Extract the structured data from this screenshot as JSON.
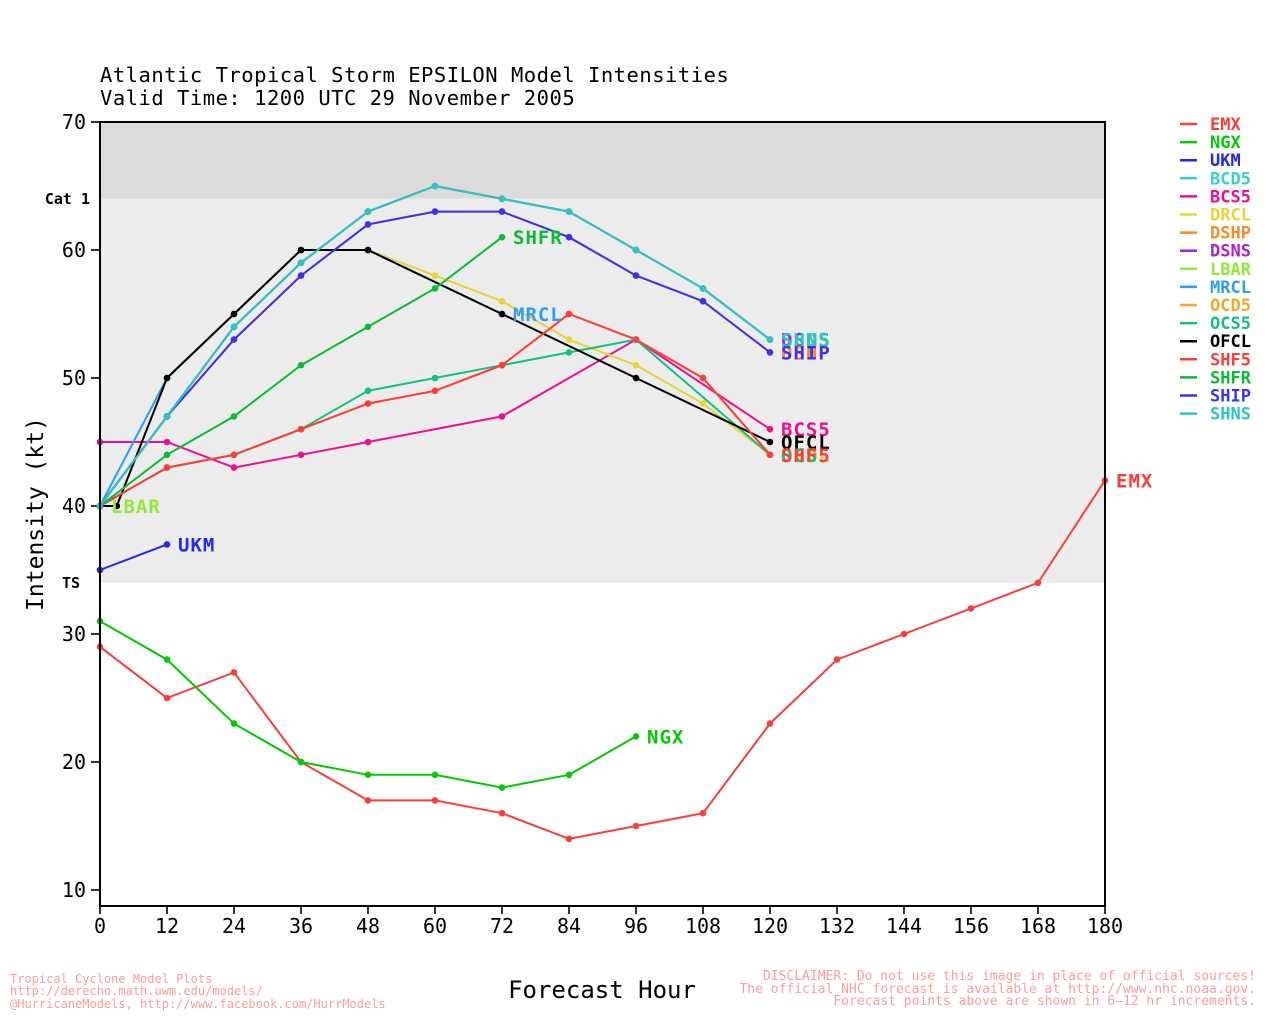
{
  "title": {
    "line1": "Atlantic Tropical Storm EPSILON Model Intensities",
    "line2": "Valid Time: 1200 UTC 29 November 2005"
  },
  "axes": {
    "x": {
      "label": "Forecast Hour",
      "ticks": [
        0,
        12,
        24,
        36,
        48,
        60,
        72,
        84,
        96,
        108,
        120,
        132,
        144,
        156,
        168,
        180
      ],
      "min": 0,
      "max": 180
    },
    "y": {
      "label": "Intensity (kt)",
      "ticks": [
        10,
        20,
        30,
        40,
        50,
        60,
        70
      ],
      "min": 10,
      "max": 70
    }
  },
  "regions": {
    "cat1": {
      "label": "Cat 1",
      "threshold_kt": 64,
      "band_color": "#dbdbdb"
    },
    "ts": {
      "label": "TS",
      "threshold_kt": 34,
      "band_color": "#ececec"
    }
  },
  "footer": {
    "left": [
      "Tropical Cyclone Model Plots",
      "http://derecho.math.uwm.edu/models/",
      "@HurricaneModels, http://www.facebook.com/HurrModels"
    ],
    "right": [
      "DISCLAIMER: Do not use this image in place of official sources!",
      "The official NHC forecast is available at http://www.nhc.noaa.gov.",
      "Forecast points above are shown in 6–12 hr increments."
    ],
    "accent_color": "#f99d9d"
  },
  "legend": {
    "items": [
      {
        "name": "EMX",
        "color": "#fb3d3d"
      },
      {
        "name": "NGX",
        "color": "#06c806"
      },
      {
        "name": "UKM",
        "color": "#2525f8"
      },
      {
        "name": "BCD5",
        "color": "#36d3cb"
      },
      {
        "name": "BCS5",
        "color": "#ef0f8e"
      },
      {
        "name": "DRCL",
        "color": "#e8d435"
      },
      {
        "name": "DSHP",
        "color": "#fa8928"
      },
      {
        "name": "DSNS",
        "color": "#a822d2"
      },
      {
        "name": "LBAR",
        "color": "#92e83a"
      },
      {
        "name": "MRCL",
        "color": "#2a9df4"
      },
      {
        "name": "OCD5",
        "color": "#f0a82a"
      },
      {
        "name": "OCS5",
        "color": "#14c07f"
      },
      {
        "name": "OFCL",
        "color": "#000000"
      },
      {
        "name": "SHF5",
        "color": "#fb3d3d"
      },
      {
        "name": "SHFR",
        "color": "#0abb35"
      },
      {
        "name": "SHIP",
        "color": "#3a32f0"
      },
      {
        "name": "SHNS",
        "color": "#2bc6bd"
      }
    ]
  },
  "chart_data": {
    "type": "line",
    "title": "Atlantic Tropical Storm EPSILON Model Intensities",
    "xlabel": "Forecast Hour",
    "ylabel": "Intensity (kt)",
    "xlim": [
      0,
      180
    ],
    "ylim": [
      10,
      70
    ],
    "grid": false,
    "legend_position": "right",
    "series": [
      {
        "name": "EMX",
        "color": "#fb3d3d",
        "hours": [
          0,
          12,
          24,
          36,
          48,
          60,
          72,
          84,
          96,
          108,
          120,
          132,
          144,
          156,
          168,
          180
        ],
        "values": [
          29,
          25,
          27,
          20,
          17,
          17,
          16,
          14,
          15,
          16,
          23,
          28,
          30,
          32,
          34,
          42
        ]
      },
      {
        "name": "NGX",
        "color": "#06c806",
        "hours": [
          0,
          12,
          24,
          36,
          48,
          60,
          72,
          84,
          96
        ],
        "values": [
          31,
          28,
          23,
          20,
          19,
          19,
          18,
          19,
          22
        ]
      },
      {
        "name": "UKM",
        "color": "#2525f8",
        "hours": [
          0,
          12
        ],
        "values": [
          35,
          37
        ]
      },
      {
        "name": "BCD5",
        "color": "#36d3cb",
        "hours": [
          0,
          12,
          24,
          36,
          48,
          60,
          72,
          84,
          96,
          108,
          120
        ],
        "values": [
          40,
          47,
          54,
          59,
          63,
          65,
          64,
          63,
          60,
          57,
          53
        ]
      },
      {
        "name": "BCS5",
        "color": "#ef0f8e",
        "hours": [
          0,
          12,
          24,
          36,
          48,
          72,
          96,
          120
        ],
        "values": [
          45,
          45,
          43,
          44,
          45,
          47,
          53,
          46
        ]
      },
      {
        "name": "DRCL",
        "color": "#e8d435",
        "hours": [
          3,
          12,
          24,
          36,
          48,
          60,
          72,
          84,
          96,
          108,
          120
        ],
        "values": [
          40,
          50,
          55,
          60,
          60,
          58,
          56,
          53,
          51,
          48,
          44
        ]
      },
      {
        "name": "DSHP",
        "color": "#fa8928",
        "hours": [
          0,
          12,
          24,
          36,
          48,
          60,
          72,
          84,
          96,
          108,
          120
        ],
        "values": [
          40,
          47,
          53,
          58,
          62,
          63,
          63,
          61,
          58,
          56,
          52
        ]
      },
      {
        "name": "DSNS",
        "color": "#a822d2",
        "hours": [
          0,
          12,
          24,
          36,
          48,
          60,
          72,
          84,
          96,
          108,
          120
        ],
        "values": [
          40,
          47,
          54,
          59,
          63,
          65,
          64,
          63,
          60,
          57,
          53
        ]
      },
      {
        "name": "LBAR",
        "color": "#92e83a",
        "hours": [
          0
        ],
        "values": [
          40
        ]
      },
      {
        "name": "MRCL",
        "color": "#2a9df4",
        "hours": [
          0,
          12,
          24,
          36,
          48,
          72
        ],
        "values": [
          40,
          50,
          55,
          60,
          60,
          55
        ]
      },
      {
        "name": "OCD5",
        "color": "#f0a82a",
        "hours": [
          0,
          12,
          24,
          36,
          48,
          60,
          72,
          84,
          96,
          108,
          120
        ],
        "values": [
          40,
          43,
          44,
          46,
          48,
          49,
          51,
          55,
          53,
          50,
          44
        ]
      },
      {
        "name": "OCS5",
        "color": "#14c07f",
        "hours": [
          0,
          12,
          24,
          36,
          48,
          60,
          72,
          84,
          96,
          120
        ],
        "values": [
          40,
          43,
          44,
          46,
          49,
          50,
          51,
          52,
          53,
          44
        ]
      },
      {
        "name": "OFCL",
        "color": "#000000",
        "hours": [
          0,
          3,
          12,
          24,
          36,
          48,
          72,
          96,
          120
        ],
        "values": [
          40,
          40,
          50,
          55,
          60,
          60,
          55,
          50,
          45
        ]
      },
      {
        "name": "SHF5",
        "color": "#fb3d3d",
        "hours": [
          0,
          12,
          24,
          36,
          48,
          60,
          72,
          84,
          96,
          108,
          120
        ],
        "values": [
          40,
          43,
          44,
          46,
          48,
          49,
          51,
          55,
          53,
          50,
          44
        ]
      },
      {
        "name": "SHFR",
        "color": "#0abb35",
        "hours": [
          0,
          12,
          24,
          36,
          48,
          60,
          72
        ],
        "values": [
          40,
          44,
          47,
          51,
          54,
          57,
          61
        ]
      },
      {
        "name": "SHIP",
        "color": "#3a32f0",
        "hours": [
          0,
          12,
          24,
          36,
          48,
          60,
          72,
          84,
          96,
          108,
          120
        ],
        "values": [
          40,
          47,
          53,
          58,
          62,
          63,
          63,
          61,
          58,
          56,
          52
        ]
      },
      {
        "name": "SHNS",
        "color": "#2bc6bd",
        "hours": [
          0,
          12,
          24,
          36,
          48,
          60,
          72,
          84,
          96,
          108,
          120
        ],
        "values": [
          40,
          47,
          54,
          59,
          63,
          65,
          64,
          63,
          60,
          57,
          53
        ]
      }
    ],
    "end_labels": [
      {
        "text": "LBAR",
        "color": "#92e83a",
        "hour": 0,
        "kt": 40
      },
      {
        "text": "UKM",
        "color": "#2525f8",
        "hour": 12,
        "kt": 37
      },
      {
        "text": "MRCL",
        "color": "#2a9df4",
        "hour": 72,
        "kt": 55
      },
      {
        "text": "SHFR",
        "color": "#0abb35",
        "hour": 72,
        "kt": 61
      },
      {
        "text": "NGX",
        "color": "#06c806",
        "hour": 96,
        "kt": 22
      },
      {
        "text": "BCD5",
        "color": "#36d3cb",
        "hour": 120,
        "kt": 53
      },
      {
        "text": "DSNS",
        "color": "#a822d2",
        "hour": 120,
        "kt": 53
      },
      {
        "text": "SHNS",
        "color": "#2bc6bd",
        "hour": 120,
        "kt": 53
      },
      {
        "text": "DSHP",
        "color": "#fa8928",
        "hour": 120,
        "kt": 52
      },
      {
        "text": "SHIP",
        "color": "#3a32f0",
        "hour": 120,
        "kt": 52
      },
      {
        "text": "BCS5",
        "color": "#ef0f8e",
        "hour": 120,
        "kt": 46
      },
      {
        "text": "OFCL",
        "color": "#000000",
        "hour": 120,
        "kt": 45
      },
      {
        "text": "DRCL",
        "color": "#e8d435",
        "hour": 120,
        "kt": 44
      },
      {
        "text": "OCD5",
        "color": "#f0a82a",
        "hour": 120,
        "kt": 44
      },
      {
        "text": "OCS5",
        "color": "#14c07f",
        "hour": 120,
        "kt": 44
      },
      {
        "text": "SHF5",
        "color": "#fb3d3d",
        "hour": 120,
        "kt": 44
      },
      {
        "text": "EMX",
        "color": "#fb3d3d",
        "hour": 180,
        "kt": 42
      }
    ]
  }
}
